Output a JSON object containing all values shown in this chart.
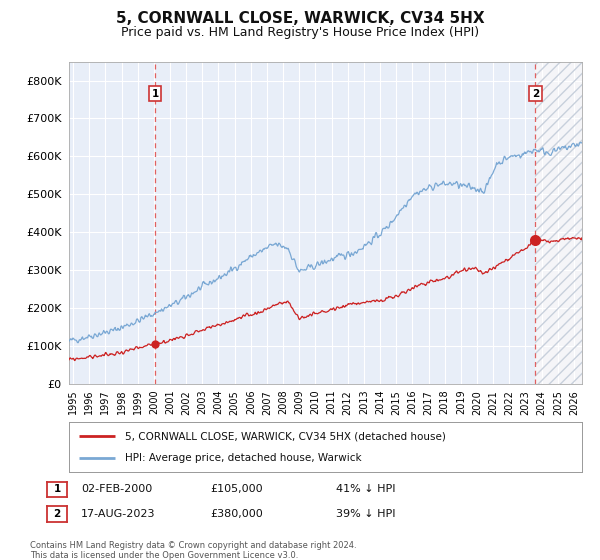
{
  "title": "5, CORNWALL CLOSE, WARWICK, CV34 5HX",
  "subtitle": "Price paid vs. HM Land Registry's House Price Index (HPI)",
  "title_fontsize": 11,
  "subtitle_fontsize": 9,
  "background_color": "#e8eef8",
  "grid_color": "#ffffff",
  "hpi_line_color": "#7aa8d4",
  "price_line_color": "#cc2222",
  "marker_color": "#cc2222",
  "dashed_vline_color": "#e06060",
  "hatch_bg_color": "#f0f0f8",
  "ylim": [
    0,
    850000
  ],
  "yticks": [
    0,
    100000,
    200000,
    300000,
    400000,
    500000,
    600000,
    700000,
    800000
  ],
  "ytick_labels": [
    "£0",
    "£100K",
    "£200K",
    "£300K",
    "£400K",
    "£500K",
    "£600K",
    "£700K",
    "£800K"
  ],
  "xmin_year": 1994.75,
  "xmax_year": 2026.5,
  "sale1_year": 2000.085,
  "sale1_price": 105000,
  "sale2_year": 2023.622,
  "sale2_price": 380000,
  "legend_label1": "5, CORNWALL CLOSE, WARWICK, CV34 5HX (detached house)",
  "legend_label2": "HPI: Average price, detached house, Warwick",
  "annotation1_date": "02-FEB-2000",
  "annotation1_price": "£105,000",
  "annotation1_pct": "41% ↓ HPI",
  "annotation2_date": "17-AUG-2023",
  "annotation2_price": "£380,000",
  "annotation2_pct": "39% ↓ HPI",
  "footer": "Contains HM Land Registry data © Crown copyright and database right 2024.\nThis data is licensed under the Open Government Licence v3.0.",
  "xtick_years": [
    1995,
    1996,
    1997,
    1998,
    1999,
    2000,
    2001,
    2002,
    2003,
    2004,
    2005,
    2006,
    2007,
    2008,
    2009,
    2010,
    2011,
    2012,
    2013,
    2014,
    2015,
    2016,
    2017,
    2018,
    2019,
    2020,
    2021,
    2022,
    2023,
    2024,
    2025,
    2026
  ],
  "hpi_anchors_x": [
    1994.75,
    1996.0,
    1997.5,
    1999.0,
    2000.0,
    2001.5,
    2003.0,
    2004.5,
    2006.0,
    2007.5,
    2008.3,
    2009.0,
    2009.8,
    2011.0,
    2012.5,
    2013.5,
    2014.5,
    2016.0,
    2017.5,
    2018.5,
    2019.5,
    2020.5,
    2021.2,
    2022.0,
    2022.8,
    2023.6,
    2024.5,
    2026.5
  ],
  "hpi_anchors_y": [
    112000,
    125000,
    140000,
    165000,
    185000,
    215000,
    255000,
    290000,
    335000,
    368000,
    358000,
    295000,
    308000,
    328000,
    348000,
    378000,
    415000,
    498000,
    525000,
    528000,
    518000,
    510000,
    580000,
    598000,
    605000,
    618000,
    610000,
    635000
  ],
  "price_anchors_x": [
    1994.75,
    1996.0,
    1997.5,
    1999.0,
    2000.085,
    2001.0,
    2002.0,
    2003.5,
    2005.0,
    2006.5,
    2007.5,
    2008.3,
    2009.0,
    2009.8,
    2011.0,
    2012.0,
    2013.0,
    2014.0,
    2015.0,
    2016.0,
    2017.0,
    2018.0,
    2019.0,
    2019.8,
    2020.5,
    2021.5,
    2022.3,
    2023.0,
    2023.622,
    2024.5,
    2026.5
  ],
  "price_anchors_y": [
    63000,
    70000,
    78000,
    92000,
    105000,
    114000,
    128000,
    148000,
    168000,
    188000,
    208000,
    215000,
    172000,
    182000,
    195000,
    208000,
    215000,
    218000,
    230000,
    252000,
    268000,
    278000,
    295000,
    305000,
    290000,
    318000,
    340000,
    358000,
    380000,
    375000,
    385000
  ]
}
